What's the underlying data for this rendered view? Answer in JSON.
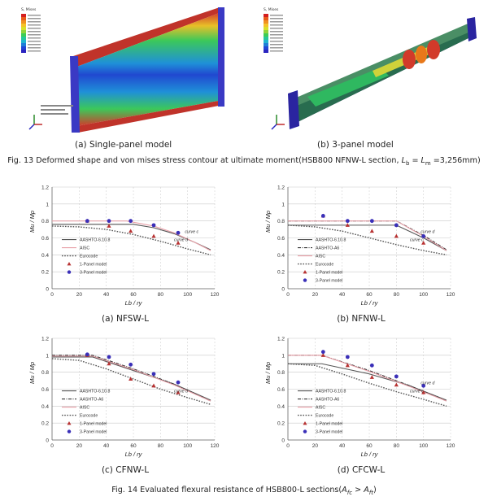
{
  "fig13": {
    "left_caption": "(a) Single-panel model",
    "right_caption": "(b) 3-panel model",
    "caption_main": "Fig. 13 Deformed shape and von mises stress contour at ultimate moment(HSB800 NFNW-L section, ",
    "caption_math": "L",
    "caption_sub_b": "b",
    "caption_eq": " = ",
    "caption_sub_m": "m",
    "caption_value": " =3,256mm)",
    "legend_left_title": "S, Mises",
    "legend_right_title": "S, Mises",
    "legend_colors": [
      "#d41e1e",
      "#e85a1a",
      "#f09020",
      "#f5c226",
      "#d8e02a",
      "#8fd43a",
      "#3ccd56",
      "#25c79a",
      "#1fb5cf",
      "#1e7ed8",
      "#2046d6",
      "#2a24c0"
    ]
  },
  "fig14": {
    "caption_prefix": "Fig. 14 Evaluated flexural resistance of HSB800-L sections(",
    "caption_suffix": ")"
  },
  "chart_data": [
    {
      "type": "line",
      "panel_caption": "(a) NFSW-L",
      "xlabel": "Lb / ry",
      "ylabel": "Mu / Mp",
      "xlim": [
        0,
        120
      ],
      "ylim": [
        0,
        1.2
      ],
      "xticks": [
        "0",
        "20",
        "40",
        "60",
        "80",
        "100",
        "120"
      ],
      "yticks": [
        "0",
        "0.2",
        "0.4",
        "0.6",
        "0.8",
        "1",
        "1.2"
      ],
      "legend": [
        "AASHTO-6.10.8",
        "AISC",
        "Eurocode",
        "1-Panel model",
        "3-Panel model"
      ],
      "annotations": [
        "curve d",
        "curve c"
      ],
      "series": [
        {
          "name": "AASHTO-6.10.8",
          "style": "solid",
          "color": "#555555",
          "x": [
            0,
            60,
            75,
            90,
            105,
            117
          ],
          "y": [
            0.76,
            0.76,
            0.72,
            0.65,
            0.55,
            0.46
          ]
        },
        {
          "name": "AISC",
          "style": "solid",
          "color": "#e8a0a8",
          "x": [
            0,
            55,
            75,
            90,
            105,
            117
          ],
          "y": [
            0.8,
            0.8,
            0.74,
            0.66,
            0.55,
            0.45
          ]
        },
        {
          "name": "Eurocode",
          "style": "dotted",
          "color": "#555555",
          "x": [
            0,
            20,
            40,
            60,
            80,
            100,
            117
          ],
          "y": [
            0.74,
            0.73,
            0.7,
            0.64,
            0.56,
            0.47,
            0.4
          ]
        },
        {
          "name": "1-Panel model",
          "style": "triangle",
          "color": "#b83232",
          "x": [
            26,
            42,
            58,
            75,
            93
          ],
          "y": [
            0.8,
            0.74,
            0.68,
            0.62,
            0.54
          ]
        },
        {
          "name": "3-Panel model",
          "style": "circle",
          "color": "#3a2fb8",
          "x": [
            26,
            42,
            58,
            75,
            93
          ],
          "y": [
            0.8,
            0.8,
            0.8,
            0.75,
            0.66
          ]
        }
      ]
    },
    {
      "type": "line",
      "panel_caption": "(b) NFNW-L",
      "xlabel": "Lb / ry",
      "ylabel": "Mu / Mp",
      "xlim": [
        0,
        120
      ],
      "ylim": [
        0,
        1.2
      ],
      "xticks": [
        "0",
        "20",
        "40",
        "60",
        "80",
        "100",
        "120"
      ],
      "yticks": [
        "0",
        "0.2",
        "0.4",
        "0.6",
        "0.8",
        "1",
        "1.2"
      ],
      "legend": [
        "AASHTO-6.10.8",
        "AASHTO-A6",
        "AISC",
        "Eurocode",
        "1-Panel model",
        "3-Panel model"
      ],
      "annotations": [
        "curve c",
        "curve d"
      ],
      "series": [
        {
          "name": "AASHTO-6.10.8",
          "style": "solid",
          "color": "#555555",
          "x": [
            0,
            80,
            100,
            117
          ],
          "y": [
            0.75,
            0.75,
            0.6,
            0.45
          ]
        },
        {
          "name": "AASHTO-A6",
          "style": "dashdot",
          "color": "#333333",
          "x": [
            0,
            80,
            100,
            117
          ],
          "y": [
            0.8,
            0.8,
            0.63,
            0.46
          ]
        },
        {
          "name": "AISC",
          "style": "solid",
          "color": "#e8a0a8",
          "x": [
            0,
            80,
            100,
            117
          ],
          "y": [
            0.8,
            0.8,
            0.62,
            0.45
          ]
        },
        {
          "name": "Eurocode",
          "style": "dotted",
          "color": "#555555",
          "x": [
            0,
            20,
            40,
            60,
            80,
            100,
            117
          ],
          "y": [
            0.75,
            0.73,
            0.68,
            0.6,
            0.52,
            0.45,
            0.4
          ]
        },
        {
          "name": "1-Panel model",
          "style": "triangle",
          "color": "#b83232",
          "x": [
            26,
            44,
            62,
            80,
            100
          ],
          "y": [
            0.86,
            0.75,
            0.68,
            0.62,
            0.54
          ]
        },
        {
          "name": "3-Panel model",
          "style": "circle",
          "color": "#3a2fb8",
          "x": [
            26,
            44,
            62,
            80,
            100
          ],
          "y": [
            0.86,
            0.8,
            0.8,
            0.75,
            0.62
          ]
        }
      ]
    },
    {
      "type": "line",
      "panel_caption": "(c) CFNW-L",
      "xlabel": "Lb / ry",
      "ylabel": "Mu / Mp",
      "xlim": [
        0,
        120
      ],
      "ylim": [
        0,
        1.2
      ],
      "xticks": [
        "0",
        "20",
        "40",
        "60",
        "80",
        "100",
        "120"
      ],
      "yticks": [
        "0",
        "0.2",
        "0.4",
        "0.6",
        "0.8",
        "1",
        "1.2"
      ],
      "legend": [
        "AASHTO-6.10.8",
        "AASHTO-A6",
        "AISC",
        "Eurocode",
        "1-Panel model",
        "3-Panel model"
      ],
      "annotations": [
        "curve d"
      ],
      "series": [
        {
          "name": "AASHTO-6.10.8",
          "style": "solid",
          "color": "#555555",
          "x": [
            0,
            30,
            60,
            90,
            117
          ],
          "y": [
            0.98,
            0.98,
            0.82,
            0.66,
            0.47
          ]
        },
        {
          "name": "AASHTO-A6",
          "style": "dashdot",
          "color": "#333333",
          "x": [
            0,
            30,
            60,
            90,
            117
          ],
          "y": [
            1,
            1,
            0.84,
            0.66,
            0.46
          ]
        },
        {
          "name": "AISC",
          "style": "solid",
          "color": "#e8a0a8",
          "x": [
            0,
            30,
            60,
            90,
            117
          ],
          "y": [
            0.99,
            0.99,
            0.83,
            0.65,
            0.46
          ]
        },
        {
          "name": "Eurocode",
          "style": "dotted",
          "color": "#555555",
          "x": [
            0,
            20,
            40,
            60,
            80,
            100,
            117
          ],
          "y": [
            0.96,
            0.94,
            0.84,
            0.72,
            0.6,
            0.5,
            0.42
          ]
        },
        {
          "name": "1-Panel model",
          "style": "triangle",
          "color": "#b83232",
          "x": [
            26,
            42,
            58,
            75,
            93
          ],
          "y": [
            1,
            0.9,
            0.72,
            0.64,
            0.56
          ]
        },
        {
          "name": "3-Panel model",
          "style": "circle",
          "color": "#3a2fb8",
          "x": [
            26,
            42,
            58,
            75,
            93
          ],
          "y": [
            1.01,
            0.98,
            0.89,
            0.78,
            0.68
          ]
        }
      ]
    },
    {
      "type": "line",
      "panel_caption": "(d) CFCW-L",
      "xlabel": "Lb / ry",
      "ylabel": "Mu / Mp",
      "xlim": [
        0,
        120
      ],
      "ylim": [
        0,
        1.2
      ],
      "xticks": [
        "0",
        "20",
        "40",
        "60",
        "80",
        "100",
        "120"
      ],
      "yticks": [
        "0",
        "0.2",
        "0.4",
        "0.6",
        "0.8",
        "1",
        "1.2"
      ],
      "legend": [
        "AASHTO-6.10.8",
        "AASHTO-A6",
        "AISC",
        "Eurocode",
        "1-Panel model",
        "3-Panel model"
      ],
      "annotations": [
        "curve c",
        "curve d"
      ],
      "series": [
        {
          "name": "AASHTO-6.10.8",
          "style": "solid",
          "color": "#555555",
          "x": [
            0,
            25,
            60,
            90,
            117
          ],
          "y": [
            0.9,
            0.9,
            0.78,
            0.64,
            0.47
          ]
        },
        {
          "name": "AASHTO-A6",
          "style": "dashdot",
          "color": "#333333",
          "x": [
            0,
            25,
            60,
            90,
            117
          ],
          "y": [
            1,
            1,
            0.82,
            0.64,
            0.46
          ]
        },
        {
          "name": "AISC",
          "style": "solid",
          "color": "#e8a0a8",
          "x": [
            0,
            25,
            60,
            90,
            117
          ],
          "y": [
            1,
            1,
            0.81,
            0.63,
            0.46
          ]
        },
        {
          "name": "Eurocode",
          "style": "dotted",
          "color": "#555555",
          "x": [
            0,
            20,
            40,
            60,
            80,
            100,
            117
          ],
          "y": [
            0.9,
            0.88,
            0.78,
            0.67,
            0.57,
            0.48,
            0.4
          ]
        },
        {
          "name": "1-Panel model",
          "style": "triangle",
          "color": "#b83232",
          "x": [
            26,
            44,
            62,
            80,
            100
          ],
          "y": [
            1,
            0.88,
            0.74,
            0.65,
            0.56
          ]
        },
        {
          "name": "3-Panel model",
          "style": "circle",
          "color": "#3a2fb8",
          "x": [
            26,
            44,
            62,
            80,
            100
          ],
          "y": [
            1.04,
            0.98,
            0.88,
            0.75,
            0.64
          ]
        }
      ]
    }
  ]
}
